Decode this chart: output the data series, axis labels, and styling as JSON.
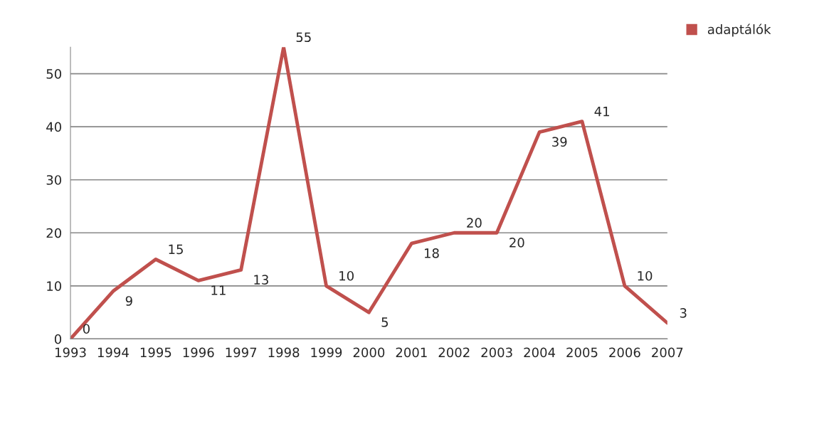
{
  "chart_data": {
    "type": "line",
    "categories": [
      "1993",
      "1994",
      "1995",
      "1996",
      "1997",
      "1998",
      "1999",
      "2000",
      "2001",
      "2002",
      "2003",
      "2004",
      "2005",
      "2006",
      "2007"
    ],
    "series": [
      {
        "name": "adaptálók",
        "color": "#c0504d",
        "values": [
          0,
          9,
          15,
          11,
          13,
          55,
          10,
          5,
          18,
          20,
          20,
          39,
          41,
          10,
          3
        ]
      }
    ],
    "ylim": [
      0,
      55
    ],
    "yticks": [
      0,
      10,
      20,
      30,
      40,
      50
    ],
    "grid": "y",
    "legend": "top right",
    "data_labels": true,
    "marker": "none",
    "line_style": "solid"
  }
}
